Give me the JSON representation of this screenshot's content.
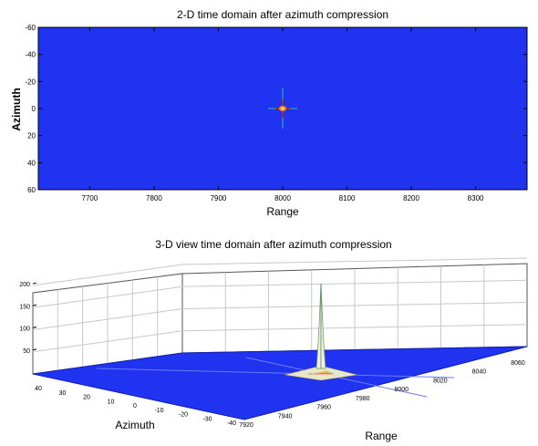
{
  "window": {
    "background": "#ffffff"
  },
  "chart_data": [
    {
      "type": "heatmap",
      "title": "2-D time domain after azimuth compression",
      "xlabel": "Range",
      "ylabel": "Azimuth",
      "xlim": [
        7620,
        8380
      ],
      "ylim": [
        60,
        -60
      ],
      "x_ticks": [
        7700,
        7800,
        7900,
        8000,
        8100,
        8200,
        8300
      ],
      "y_ticks": [
        -60,
        -40,
        -20,
        0,
        20,
        40,
        60
      ],
      "x_tick_labels": [
        "7700",
        "7800",
        "7900",
        "8000",
        "8100",
        "8200",
        "8300"
      ],
      "y_tick_labels": [
        "-60",
        "-40",
        "-20",
        "0",
        "20",
        "40",
        "60"
      ],
      "background_color": "#1f33f0",
      "peak": {
        "x": 8000,
        "y": 0
      },
      "peak_colors": [
        "#e0e040",
        "#ff8030",
        "#a03020",
        "#30c0a0"
      ]
    },
    {
      "type": "surface",
      "title": "3-D view time domain after azimuth compression",
      "xlabel": "Range",
      "ylabel": "Azimuth",
      "x_ticks": [
        7920,
        7940,
        7960,
        7980,
        8000,
        8020,
        8040,
        8060
      ],
      "y_ticks": [
        40,
        30,
        20,
        10,
        0,
        -10,
        -20,
        -30,
        -40
      ],
      "z_ticks": [
        50,
        100,
        150,
        200
      ],
      "x_tick_labels": [
        "7920",
        "7940",
        "7960",
        "7980",
        "8000",
        "8020",
        "8040",
        "8060"
      ],
      "y_tick_labels": [
        "40",
        "30",
        "20",
        "10",
        "0",
        "-10",
        "-20",
        "-30",
        "-40"
      ],
      "z_tick_labels": [
        "50",
        "100",
        "150",
        "200"
      ],
      "zlim": [
        0,
        210
      ],
      "grid": true,
      "peak": {
        "x": 8000,
        "y": 0,
        "z": 200
      },
      "surface_color": "#1f33f0"
    }
  ]
}
